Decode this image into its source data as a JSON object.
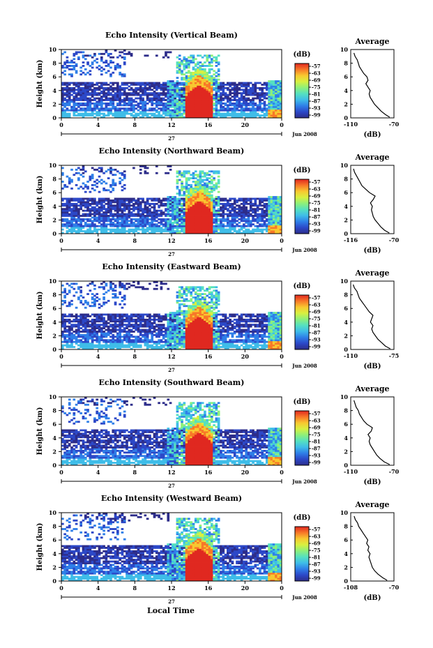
{
  "figure": {
    "x_axis_label": "Local Time",
    "height_label": "Height (km)",
    "colorbar_unit": "(dB)",
    "profile_title": "Average",
    "profile_xlabel": "(dB)",
    "day_label": "27",
    "month_label": "Jun 2008"
  },
  "chart_data": [
    {
      "type": "heatmap",
      "title": "Echo Intensity (Vertical Beam)",
      "xlabel": "",
      "ylabel": "Height (km)",
      "x_ticks": [
        "0",
        "4",
        "8",
        "12",
        "16",
        "20",
        "0"
      ],
      "y_ticks": [
        "0",
        "2",
        "4",
        "6",
        "8",
        "10"
      ],
      "xlim": [
        0,
        24
      ],
      "ylim": [
        0,
        10
      ],
      "colorbar": {
        "unit": "(dB)",
        "ticks": [
          "-57",
          "-63",
          "-69",
          "-75",
          "-81",
          "-87",
          "-93",
          "-99"
        ]
      },
      "profile": {
        "title": "Average",
        "xlabel": "(dB)",
        "xlim": [
          -110,
          -70
        ],
        "x_ticks": [
          "-110",
          "-70"
        ],
        "y_ticks": [
          "0",
          "2",
          "4",
          "6",
          "8",
          "10"
        ],
        "points": [
          [
            -74,
            0.1
          ],
          [
            -78,
            0.5
          ],
          [
            -82,
            1.0
          ],
          [
            -85,
            1.5
          ],
          [
            -88,
            2.0
          ],
          [
            -90,
            2.5
          ],
          [
            -92,
            3.0
          ],
          [
            -93,
            3.5
          ],
          [
            -92,
            4.0
          ],
          [
            -94,
            4.5
          ],
          [
            -96,
            5.0
          ],
          [
            -94,
            5.5
          ],
          [
            -95,
            6.0
          ],
          [
            -98,
            6.5
          ],
          [
            -100,
            7.0
          ],
          [
            -102,
            7.5
          ],
          [
            -103,
            8.0
          ],
          [
            -104,
            8.5
          ],
          [
            -106,
            9.0
          ],
          [
            -107,
            9.5
          ]
        ]
      }
    },
    {
      "type": "heatmap",
      "title": "Echo Intensity (Northward Beam)",
      "xlabel": "",
      "ylabel": "Height (km)",
      "x_ticks": [
        "0",
        "4",
        "8",
        "12",
        "16",
        "20",
        "0"
      ],
      "y_ticks": [
        "0",
        "2",
        "4",
        "6",
        "8",
        "10"
      ],
      "xlim": [
        0,
        24
      ],
      "ylim": [
        0,
        10
      ],
      "colorbar": {
        "unit": "(dB)",
        "ticks": [
          "-57",
          "-63",
          "-69",
          "-75",
          "-81",
          "-87",
          "-93",
          "-99"
        ]
      },
      "profile": {
        "title": "Average",
        "xlabel": "(dB)",
        "xlim": [
          -116,
          -70
        ],
        "x_ticks": [
          "-116",
          "-70"
        ],
        "y_ticks": [
          "0",
          "2",
          "4",
          "6",
          "8",
          "10"
        ],
        "points": [
          [
            -75,
            0.1
          ],
          [
            -80,
            0.5
          ],
          [
            -84,
            1.0
          ],
          [
            -87,
            1.5
          ],
          [
            -90,
            2.0
          ],
          [
            -92,
            2.5
          ],
          [
            -93,
            3.0
          ],
          [
            -94,
            3.5
          ],
          [
            -93,
            4.0
          ],
          [
            -95,
            4.5
          ],
          [
            -92,
            5.0
          ],
          [
            -90,
            5.5
          ],
          [
            -96,
            6.0
          ],
          [
            -100,
            6.5
          ],
          [
            -104,
            7.0
          ],
          [
            -106,
            7.5
          ],
          [
            -108,
            8.0
          ],
          [
            -110,
            8.5
          ],
          [
            -112,
            9.0
          ],
          [
            -113,
            9.5
          ]
        ]
      }
    },
    {
      "type": "heatmap",
      "title": "Echo Intensity (Eastward Beam)",
      "xlabel": "",
      "ylabel": "Height (km)",
      "x_ticks": [
        "0",
        "4",
        "8",
        "12",
        "16",
        "20",
        "0"
      ],
      "y_ticks": [
        "0",
        "2",
        "4",
        "6",
        "8",
        "10"
      ],
      "xlim": [
        0,
        24
      ],
      "ylim": [
        0,
        10
      ],
      "colorbar": {
        "unit": "(dB)",
        "ticks": [
          "-57",
          "-63",
          "-69",
          "-75",
          "-81",
          "-87",
          "-93",
          "-99"
        ]
      },
      "profile": {
        "title": "Average",
        "xlabel": "(dB)",
        "xlim": [
          -110,
          -75
        ],
        "x_ticks": [
          "-110",
          "-75"
        ],
        "y_ticks": [
          "0",
          "2",
          "4",
          "6",
          "8",
          "10"
        ],
        "points": [
          [
            -78,
            0.1
          ],
          [
            -82,
            0.5
          ],
          [
            -85,
            1.0
          ],
          [
            -88,
            1.5
          ],
          [
            -90,
            2.0
          ],
          [
            -92,
            2.5
          ],
          [
            -93,
            3.0
          ],
          [
            -92,
            3.5
          ],
          [
            -94,
            4.0
          ],
          [
            -93,
            4.5
          ],
          [
            -92,
            5.0
          ],
          [
            -95,
            5.5
          ],
          [
            -97,
            6.0
          ],
          [
            -99,
            6.5
          ],
          [
            -101,
            7.0
          ],
          [
            -103,
            7.5
          ],
          [
            -104,
            8.0
          ],
          [
            -105,
            8.5
          ],
          [
            -107,
            9.0
          ],
          [
            -108,
            9.5
          ]
        ]
      }
    },
    {
      "type": "heatmap",
      "title": "Echo Intensity (Southward Beam)",
      "xlabel": "",
      "ylabel": "Height (km)",
      "x_ticks": [
        "0",
        "4",
        "8",
        "12",
        "16",
        "20",
        "0"
      ],
      "y_ticks": [
        "0",
        "2",
        "4",
        "6",
        "8",
        "10"
      ],
      "xlim": [
        0,
        24
      ],
      "ylim": [
        0,
        10
      ],
      "colorbar": {
        "unit": "(dB)",
        "ticks": [
          "-57",
          "-63",
          "-69",
          "-75",
          "-81",
          "-87",
          "-93",
          "-99"
        ]
      },
      "profile": {
        "title": "Average",
        "xlabel": "(dB)",
        "xlim": [
          -110,
          -70
        ],
        "x_ticks": [
          "-110",
          "-70"
        ],
        "y_ticks": [
          "0",
          "2",
          "4",
          "6",
          "8",
          "10"
        ],
        "points": [
          [
            -74,
            0.1
          ],
          [
            -79,
            0.5
          ],
          [
            -83,
            1.0
          ],
          [
            -86,
            1.5
          ],
          [
            -88,
            2.0
          ],
          [
            -90,
            2.5
          ],
          [
            -92,
            3.0
          ],
          [
            -93,
            3.5
          ],
          [
            -92,
            4.0
          ],
          [
            -94,
            4.5
          ],
          [
            -91,
            5.0
          ],
          [
            -90,
            5.5
          ],
          [
            -95,
            6.0
          ],
          [
            -98,
            6.5
          ],
          [
            -100,
            7.0
          ],
          [
            -102,
            7.5
          ],
          [
            -103,
            8.0
          ],
          [
            -105,
            8.5
          ],
          [
            -106,
            9.0
          ],
          [
            -107,
            9.5
          ]
        ]
      }
    },
    {
      "type": "heatmap",
      "title": "Echo Intensity (Westward Beam)",
      "xlabel": "Local Time",
      "ylabel": "Height (km)",
      "x_ticks": [
        "0",
        "4",
        "8",
        "12",
        "16",
        "20",
        "0"
      ],
      "y_ticks": [
        "0",
        "2",
        "4",
        "6",
        "8",
        "10"
      ],
      "xlim": [
        0,
        24
      ],
      "ylim": [
        0,
        10
      ],
      "colorbar": {
        "unit": "(dB)",
        "ticks": [
          "-57",
          "-63",
          "-69",
          "-75",
          "-81",
          "-87",
          "-93",
          "-99"
        ]
      },
      "profile": {
        "title": "Average",
        "xlabel": "(dB)",
        "xlim": [
          -108,
          -70
        ],
        "x_ticks": [
          "-108",
          "-70"
        ],
        "y_ticks": [
          "0",
          "2",
          "4",
          "6",
          "8",
          "10"
        ],
        "points": [
          [
            -76,
            0.1
          ],
          [
            -80,
            0.5
          ],
          [
            -84,
            1.0
          ],
          [
            -87,
            1.5
          ],
          [
            -89,
            2.0
          ],
          [
            -90,
            2.5
          ],
          [
            -91,
            3.0
          ],
          [
            -92,
            3.5
          ],
          [
            -91,
            4.0
          ],
          [
            -93,
            4.5
          ],
          [
            -92,
            5.0
          ],
          [
            -94,
            5.5
          ],
          [
            -93,
            6.0
          ],
          [
            -95,
            6.5
          ],
          [
            -97,
            7.0
          ],
          [
            -99,
            7.5
          ],
          [
            -101,
            8.0
          ],
          [
            -102,
            8.5
          ],
          [
            -104,
            9.0
          ],
          [
            -105,
            9.5
          ]
        ]
      }
    }
  ]
}
